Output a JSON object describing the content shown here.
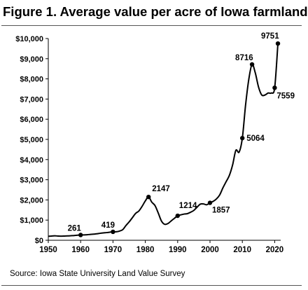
{
  "figure": {
    "title": "Figure 1. Average value per acre of Iowa farmland",
    "source": "Source: Iowa State University Land Value Survey"
  },
  "colors": {
    "line": "#000000",
    "axis": "#000000",
    "rule": "#555555"
  },
  "chart_data": {
    "type": "line",
    "title": "Figure 1. Average value per acre of Iowa farmland",
    "xlabel": "",
    "ylabel": "",
    "xlim": [
      1950,
      2022
    ],
    "ylim": [
      0,
      10000
    ],
    "grid": false,
    "legend": "none",
    "x_ticks": [
      1950,
      1960,
      1970,
      1980,
      1990,
      2000,
      2010,
      2020
    ],
    "x_tick_labels": [
      "1950",
      "1960",
      "1970",
      "1980",
      "1990",
      "2000",
      "2010",
      "2020"
    ],
    "y_ticks": [
      0,
      1000,
      2000,
      3000,
      4000,
      5000,
      6000,
      7000,
      8000,
      9000,
      10000
    ],
    "y_tick_labels": [
      "$0",
      "$1,000",
      "$2,000",
      "$3,000",
      "$4,000",
      "$5,000",
      "$6,000",
      "$7,000",
      "$8,000",
      "$9,000",
      "$10,000"
    ],
    "series": [
      {
        "x": [
          1950,
          1951,
          1952,
          1953,
          1954,
          1955,
          1956,
          1957,
          1958,
          1959,
          1960,
          1961,
          1962,
          1963,
          1964,
          1965,
          1966,
          1967,
          1968,
          1969,
          1970,
          1971,
          1972,
          1973,
          1974,
          1975,
          1976,
          1977,
          1978,
          1979,
          1980,
          1981,
          1982,
          1983,
          1984,
          1985,
          1986,
          1987,
          1988,
          1989,
          1990,
          1991,
          1992,
          1993,
          1994,
          1995,
          1996,
          1997,
          1998,
          1999,
          2000,
          2001,
          2002,
          2003,
          2004,
          2005,
          2006,
          2007,
          2008,
          2009,
          2010,
          2011,
          2012,
          2013,
          2014,
          2015,
          2016,
          2017,
          2018,
          2019,
          2020,
          2021
        ],
        "values": [
          195,
          210,
          220,
          210,
          205,
          210,
          215,
          225,
          235,
          250,
          261,
          265,
          275,
          290,
          305,
          320,
          345,
          365,
          380,
          400,
          419,
          420,
          455,
          525,
          730,
          910,
          1120,
          1330,
          1450,
          1680,
          1950,
          2147,
          1890,
          1720,
          1350,
          950,
          790,
          830,
          960,
          1090,
          1214,
          1260,
          1300,
          1320,
          1390,
          1480,
          1640,
          1790,
          1800,
          1760,
          1857,
          1930,
          2050,
          2250,
          2600,
          2910,
          3220,
          3740,
          4460,
          4370,
          5064,
          6700,
          7980,
          8716,
          8300,
          7600,
          7200,
          7200,
          7300,
          7300,
          7559,
          9751
        ]
      }
    ],
    "marked_points": [
      {
        "x": 1960,
        "y": 261,
        "label": "261"
      },
      {
        "x": 1970,
        "y": 419,
        "label": "419"
      },
      {
        "x": 1981,
        "y": 2147,
        "label": "2147"
      },
      {
        "x": 1990,
        "y": 1214,
        "label": "1214"
      },
      {
        "x": 2000,
        "y": 1857,
        "label": "1857"
      },
      {
        "x": 2010,
        "y": 5064,
        "label": "5064"
      },
      {
        "x": 2013,
        "y": 8716,
        "label": "8716"
      },
      {
        "x": 2020,
        "y": 7559,
        "label": "7559"
      },
      {
        "x": 2021,
        "y": 9751,
        "label": "9751"
      }
    ]
  }
}
